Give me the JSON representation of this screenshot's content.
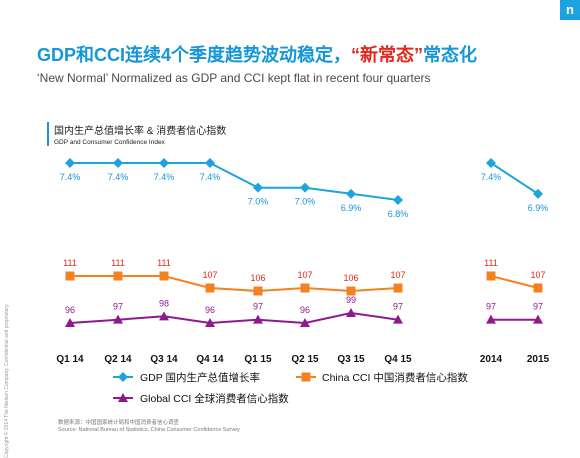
{
  "brand": {
    "logo_letter": "n",
    "accent": "#1596d8"
  },
  "copyright": "Copyright © 2014 The Nielsen Company. Confidential and proprietary.",
  "title": {
    "prefix": "GDP和CCI连续4个季度趋势波动稳定，",
    "highlight": "“新常态”",
    "suffix": "常态化"
  },
  "subtitle": "‘New Normal’ Normalized as GDP and CCI kept flat in recent four quarters",
  "chart_header": {
    "zh": "国内生产总值增长率 & 消费者信心指数",
    "en": "GDP and Consumer Confidence Index"
  },
  "source": {
    "zh": "数据来源：中国国家统计局和中国消费者信心调查",
    "en": "Source: National Bureau of Statistics, China Consumer Confidence Survey"
  },
  "chart_data": {
    "type": "line",
    "categories": [
      "Q1 14",
      "Q2 14",
      "Q3 14",
      "Q4 14",
      "Q1 15",
      "Q2 15",
      "Q3 15",
      "Q4 15",
      "2014",
      "2015"
    ],
    "segments": [
      [
        0,
        7
      ],
      [
        8,
        9
      ]
    ],
    "series": [
      {
        "name": "GDP 国内生产总值增长率",
        "key": "gdp",
        "color": "#1fa3dd",
        "marker": "diamond",
        "values": [
          7.4,
          7.4,
          7.4,
          7.4,
          7.0,
          7.0,
          6.9,
          6.8,
          7.4,
          6.9
        ],
        "labels": [
          "7.4%",
          "7.4%",
          "7.4%",
          "7.4%",
          "7.0%",
          "7.0%",
          "6.9%",
          "6.8%",
          "7.4%",
          "6.9%"
        ]
      },
      {
        "name": "China CCI 中国消费者信心指数",
        "key": "china",
        "color": "#f5821f",
        "marker": "square",
        "values": [
          111,
          111,
          111,
          107,
          106,
          107,
          106,
          107,
          111,
          107
        ],
        "labels": [
          "111",
          "111",
          "111",
          "107",
          "106",
          "107",
          "106",
          "107",
          "111",
          "107"
        ]
      },
      {
        "name": "Global CCI 全球消费者信心指数",
        "key": "global",
        "color": "#8e1b8e",
        "marker": "triangle",
        "values": [
          96,
          97,
          98,
          96,
          97,
          96,
          99,
          97,
          97,
          97
        ],
        "labels": [
          "96",
          "97",
          "98",
          "96",
          "97",
          "96",
          "99",
          "97",
          "97",
          "97"
        ]
      }
    ]
  }
}
